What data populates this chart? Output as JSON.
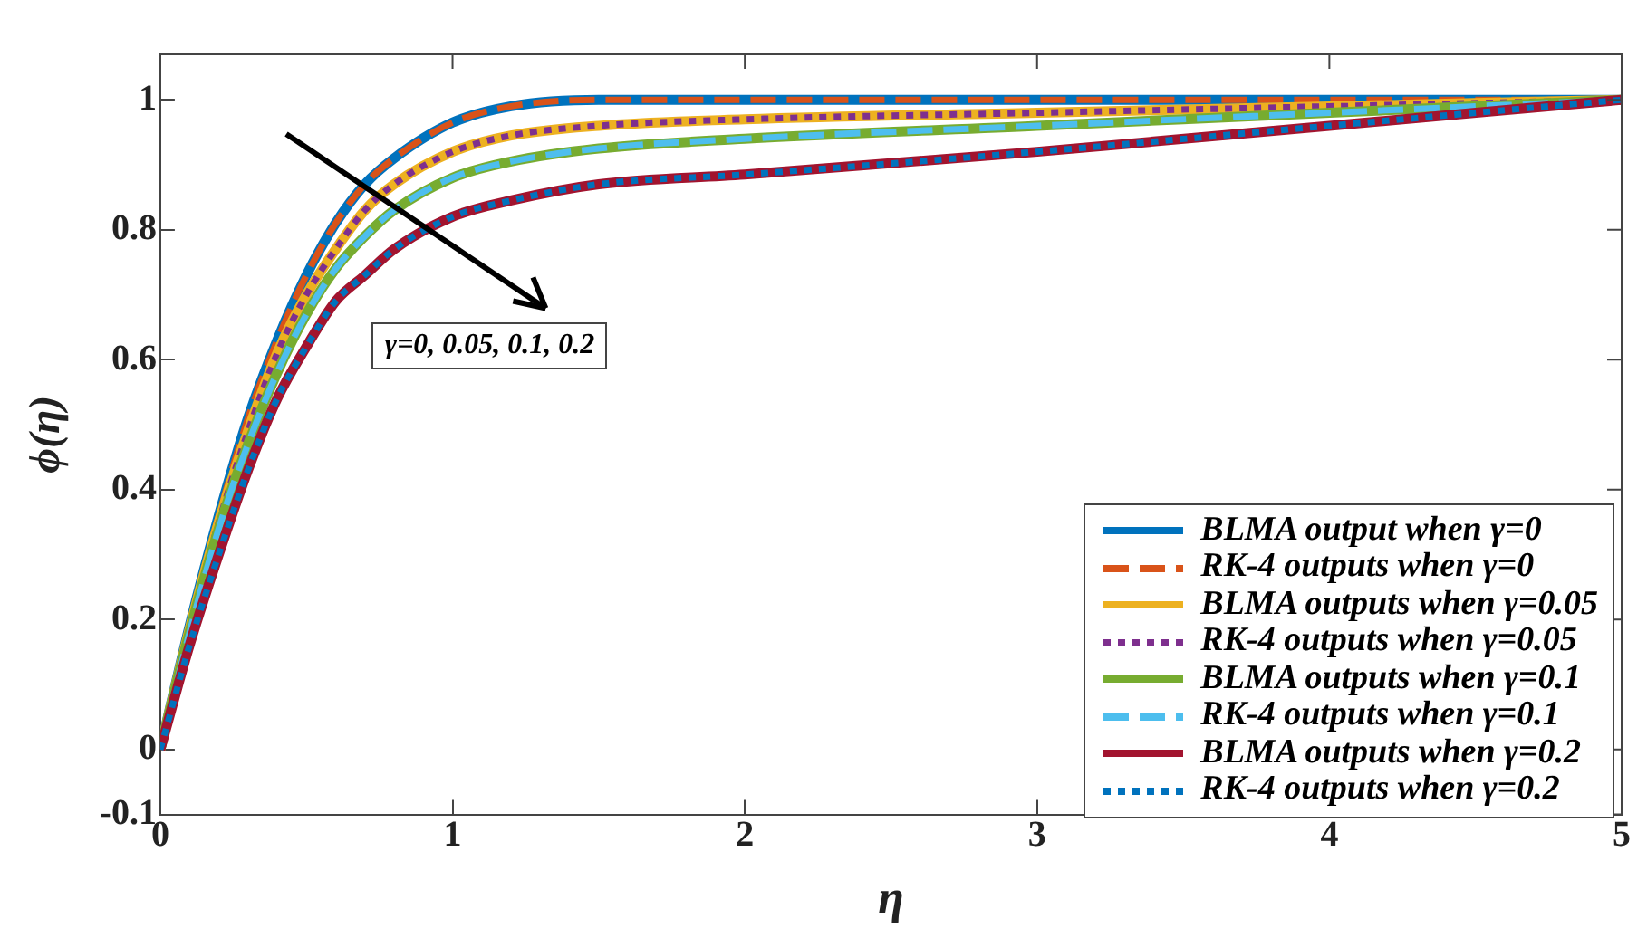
{
  "chart_data": {
    "type": "line",
    "xlabel": "η",
    "ylabel": "ϕ(η)",
    "xlim": [
      0,
      5
    ],
    "xticks": [
      0,
      1,
      2,
      3,
      4,
      5
    ],
    "ylim": [
      -0.1,
      1.07
    ],
    "yticks": [
      -0.1,
      0,
      0.2,
      0.4,
      0.6,
      0.8,
      1
    ],
    "x": [
      0,
      0.1,
      0.2,
      0.3,
      0.4,
      0.5,
      0.6,
      0.7,
      0.8,
      1.0,
      1.2,
      1.5,
      2,
      3,
      4,
      5
    ],
    "legend": "bottom right",
    "grid": false,
    "marker": "none",
    "annotations": [
      "γ=0, 0.05, 0.1, 0.2"
    ],
    "series": [
      {
        "name": "BLMA output when γ=0",
        "color": "#0072bd",
        "line_style": "solid",
        "values": [
          0,
          0.19,
          0.36,
          0.51,
          0.63,
          0.73,
          0.81,
          0.87,
          0.91,
          0.965,
          0.99,
          1,
          1,
          1,
          1,
          1
        ]
      },
      {
        "name": "RK-4 outputs when γ=0",
        "color": "#d95319",
        "line_style": "dashed",
        "values": [
          0,
          0.19,
          0.36,
          0.51,
          0.63,
          0.73,
          0.81,
          0.87,
          0.91,
          0.965,
          0.99,
          1,
          1,
          1,
          1,
          1
        ]
      },
      {
        "name": "BLMA outputs when γ=0.05",
        "color": "#edb120",
        "line_style": "solid",
        "values": [
          0,
          0.185,
          0.35,
          0.49,
          0.61,
          0.7,
          0.77,
          0.83,
          0.87,
          0.92,
          0.945,
          0.96,
          0.97,
          0.98,
          0.99,
          1
        ]
      },
      {
        "name": "RK-4 outputs when γ=0.05",
        "color": "#7e2f8e",
        "line_style": "dotted",
        "values": [
          0,
          0.185,
          0.35,
          0.49,
          0.61,
          0.7,
          0.77,
          0.83,
          0.87,
          0.92,
          0.945,
          0.96,
          0.97,
          0.98,
          0.99,
          1
        ]
      },
      {
        "name": "BLMA outputs when γ=0.1",
        "color": "#77ac30",
        "line_style": "solid",
        "values": [
          0,
          0.18,
          0.34,
          0.47,
          0.58,
          0.67,
          0.74,
          0.79,
          0.83,
          0.88,
          0.905,
          0.925,
          0.94,
          0.96,
          0.98,
          1
        ]
      },
      {
        "name": "RK-4 outputs when γ=0.1",
        "color": "#4dbeee",
        "line_style": "dashed",
        "values": [
          0,
          0.18,
          0.34,
          0.47,
          0.58,
          0.67,
          0.74,
          0.79,
          0.83,
          0.88,
          0.905,
          0.925,
          0.94,
          0.96,
          0.98,
          1
        ]
      },
      {
        "name": "BLMA outputs when γ=0.2",
        "color": "#a2142f",
        "line_style": "solid",
        "values": [
          0,
          0.16,
          0.3,
          0.43,
          0.54,
          0.62,
          0.69,
          0.73,
          0.77,
          0.82,
          0.845,
          0.87,
          0.885,
          0.92,
          0.96,
          1
        ]
      },
      {
        "name": "RK-4 outputs when γ=0.2",
        "color": "#0072bd",
        "line_style": "dotted",
        "values": [
          0,
          0.16,
          0.3,
          0.43,
          0.54,
          0.62,
          0.69,
          0.73,
          0.77,
          0.82,
          0.845,
          0.87,
          0.885,
          0.92,
          0.96,
          1
        ]
      }
    ]
  }
}
